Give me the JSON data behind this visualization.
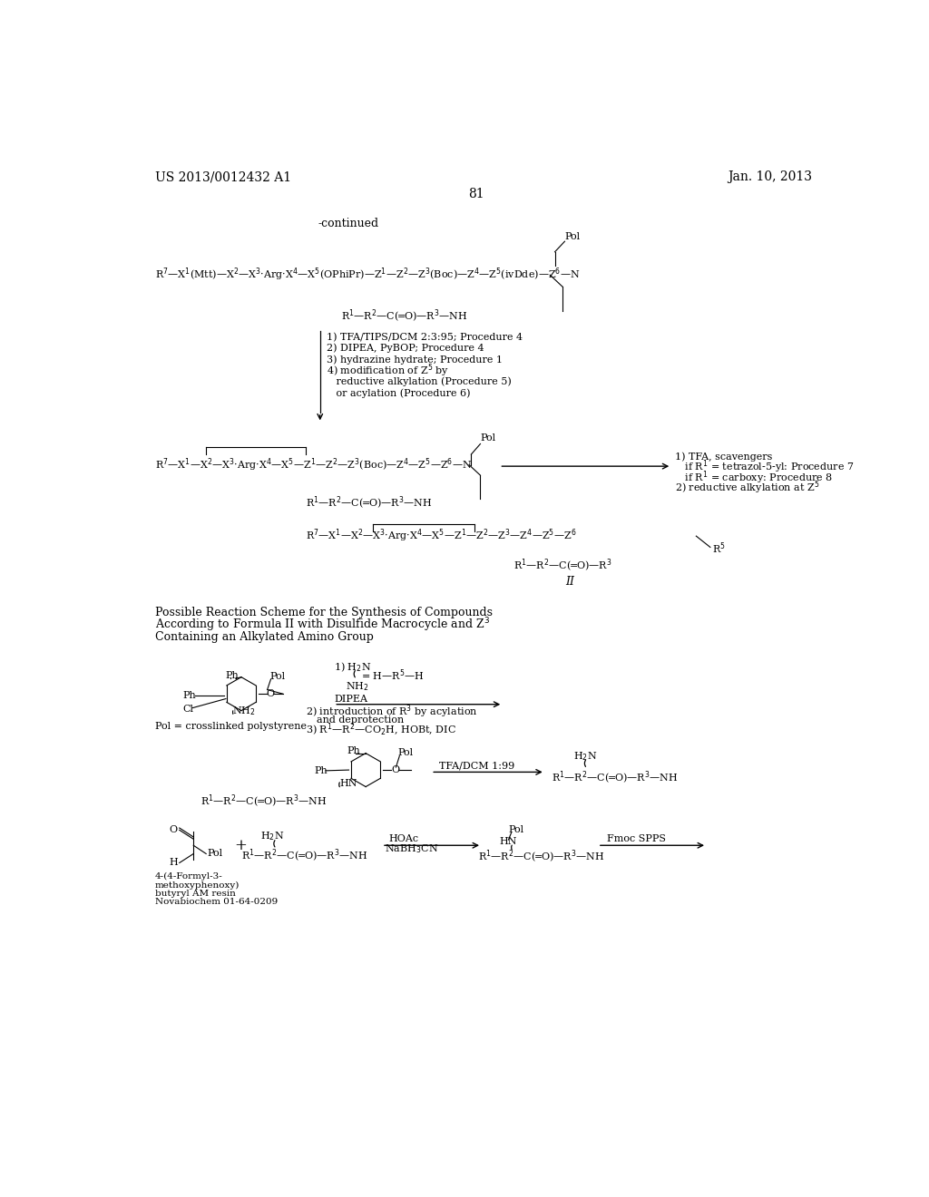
{
  "bg_color": "#ffffff",
  "header_left": "US 2013/0012432 A1",
  "header_right": "Jan. 10, 2013",
  "page_number": "81",
  "continued": "-continued"
}
